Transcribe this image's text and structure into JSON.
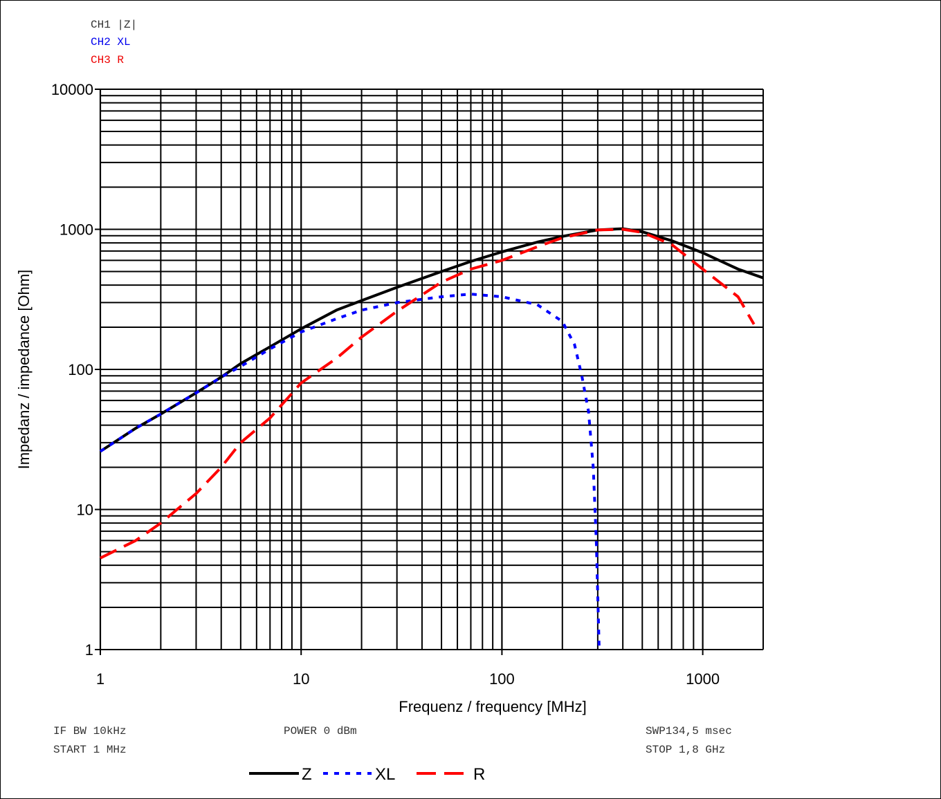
{
  "channels": [
    {
      "label": "CH1 |Z|",
      "color": "#333333"
    },
    {
      "label": "CH2 XL",
      "color": "#0000ee"
    },
    {
      "label": "CH3 R",
      "color": "#ee0000"
    }
  ],
  "settings": {
    "if_bw": "IF BW 10kHz",
    "start": "START 1 MHz",
    "power": "POWER 0 dBm",
    "sweep": "SWP134,5 msec",
    "stop": "STOP 1,8 GHz"
  },
  "chart_data": {
    "type": "line",
    "title": "",
    "xlabel": "Frequenz / frequency [MHz]",
    "ylabel": "Impedanz / impedance [Ohm]",
    "x_scale": "log",
    "y_scale": "log",
    "xlim": [
      1,
      2000
    ],
    "ylim": [
      1,
      10000
    ],
    "x_ticks": [
      1,
      10,
      100,
      1000
    ],
    "x_tick_labels": [
      "1",
      "10",
      "100",
      "1000"
    ],
    "y_ticks": [
      1,
      10,
      100,
      1000,
      10000
    ],
    "y_tick_labels": [
      "1",
      "10",
      "100",
      "1000",
      "10000"
    ],
    "grid": true,
    "legend_position": "bottom-center",
    "series": [
      {
        "name": "Z",
        "color": "#000000",
        "style": "solid",
        "x": [
          1,
          1.5,
          2,
          3,
          4,
          5,
          7,
          10,
          15,
          20,
          30,
          50,
          70,
          100,
          150,
          200,
          300,
          400,
          500,
          700,
          1000,
          1500,
          2000
        ],
        "y": [
          26,
          38,
          48,
          68,
          88,
          110,
          145,
          195,
          265,
          310,
          385,
          500,
          590,
          690,
          810,
          890,
          990,
          1010,
          960,
          830,
          680,
          520,
          450
        ]
      },
      {
        "name": "XL",
        "color": "#0000ff",
        "style": "dotted",
        "x": [
          1,
          1.5,
          2,
          3,
          4,
          5,
          7,
          10,
          15,
          20,
          30,
          50,
          70,
          100,
          150,
          200,
          230,
          250,
          270,
          285,
          295,
          305
        ],
        "y": [
          26,
          38,
          48,
          68,
          88,
          105,
          140,
          185,
          230,
          265,
          300,
          330,
          345,
          330,
          290,
          220,
          150,
          90,
          50,
          20,
          6,
          1
        ]
      },
      {
        "name": "R",
        "color": "#ff0000",
        "style": "dashed",
        "x": [
          1,
          1.5,
          2,
          3,
          4,
          5,
          7,
          10,
          15,
          20,
          30,
          50,
          70,
          100,
          150,
          200,
          300,
          400,
          500,
          700,
          1000,
          1500,
          1800
        ],
        "y": [
          4.5,
          6,
          8,
          13,
          20,
          30,
          45,
          80,
          120,
          170,
          260,
          420,
          520,
          600,
          750,
          870,
          990,
          1000,
          950,
          780,
          520,
          330,
          210
        ]
      }
    ]
  }
}
